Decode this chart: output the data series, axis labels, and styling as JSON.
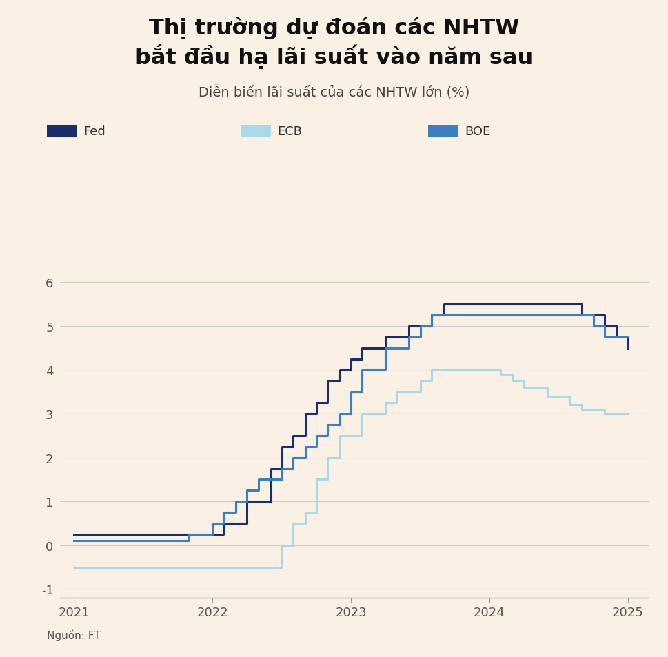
{
  "title": "Thị trường dự đoán các NHTW\nbắt đầu hạ lãi suất vào năm sau",
  "subtitle": "Diễn biến lãi suất của các NHTW lớn (%)",
  "source": "Nguồn: FT",
  "background_color": "#faf0e4",
  "fed_color": "#1a2e6b",
  "ecb_color": "#a8d8ea",
  "boe_color": "#3a7fc1",
  "ylim": [
    -1.2,
    6.6
  ],
  "xlim": [
    2020.9,
    2025.15
  ],
  "yticks": [
    -1,
    0,
    1,
    2,
    3,
    4,
    5,
    6
  ],
  "xticks": [
    2021,
    2022,
    2023,
    2024,
    2025
  ],
  "fed_x": [
    2021.0,
    2022.0,
    2022.08,
    2022.25,
    2022.42,
    2022.5,
    2022.58,
    2022.67,
    2022.75,
    2022.83,
    2022.92,
    2023.0,
    2023.08,
    2023.25,
    2023.42,
    2023.58,
    2023.67,
    2023.75,
    2023.83,
    2024.0,
    2024.25,
    2024.5,
    2024.67,
    2024.75,
    2024.83,
    2024.92,
    2025.0
  ],
  "fed_y": [
    0.25,
    0.25,
    0.5,
    1.0,
    1.75,
    2.25,
    2.5,
    3.0,
    3.25,
    3.75,
    4.0,
    4.25,
    4.5,
    4.75,
    5.0,
    5.25,
    5.5,
    5.5,
    5.5,
    5.5,
    5.5,
    5.5,
    5.25,
    5.25,
    5.0,
    4.75,
    4.5
  ],
  "ecb_x": [
    2021.0,
    2022.42,
    2022.5,
    2022.58,
    2022.67,
    2022.75,
    2022.83,
    2022.92,
    2023.0,
    2023.08,
    2023.25,
    2023.33,
    2023.5,
    2023.58,
    2023.75,
    2023.92,
    2024.0,
    2024.08,
    2024.17,
    2024.25,
    2024.42,
    2024.58,
    2024.67,
    2024.83,
    2025.0
  ],
  "ecb_y": [
    -0.5,
    -0.5,
    0.0,
    0.5,
    0.75,
    1.5,
    2.0,
    2.5,
    2.5,
    3.0,
    3.25,
    3.5,
    3.75,
    4.0,
    4.0,
    4.0,
    4.0,
    3.9,
    3.75,
    3.6,
    3.4,
    3.2,
    3.1,
    3.0,
    3.0
  ],
  "boe_x": [
    2021.0,
    2021.83,
    2022.0,
    2022.08,
    2022.17,
    2022.25,
    2022.33,
    2022.5,
    2022.58,
    2022.67,
    2022.75,
    2022.83,
    2022.92,
    2023.0,
    2023.08,
    2023.25,
    2023.42,
    2023.5,
    2023.58,
    2023.67,
    2023.75,
    2024.0,
    2024.25,
    2024.5,
    2024.67,
    2024.75,
    2024.83,
    2025.0
  ],
  "boe_y": [
    0.1,
    0.25,
    0.5,
    0.75,
    1.0,
    1.25,
    1.5,
    1.75,
    2.0,
    2.25,
    2.5,
    2.75,
    3.0,
    3.5,
    4.0,
    4.5,
    4.75,
    5.0,
    5.25,
    5.25,
    5.25,
    5.25,
    5.25,
    5.25,
    5.25,
    5.0,
    4.75,
    4.75
  ]
}
